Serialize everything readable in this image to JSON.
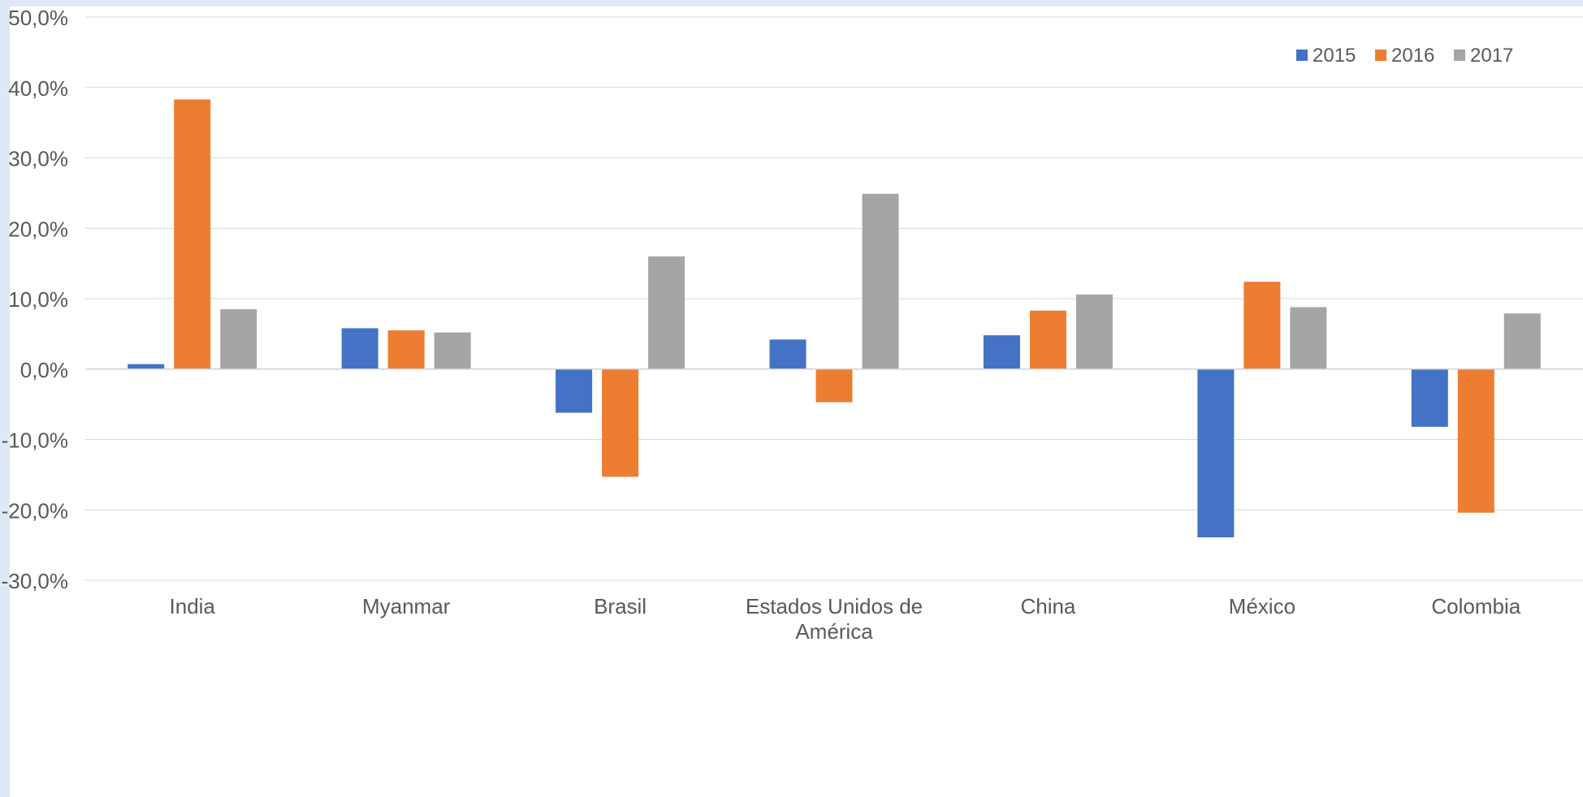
{
  "chart_data": {
    "type": "bar",
    "categories": [
      "India",
      "Myanmar",
      "Brasil",
      "Estados Unidos de América",
      "China",
      "México",
      "Colombia"
    ],
    "category_lines": [
      [
        "India"
      ],
      [
        "Myanmar"
      ],
      [
        "Brasil"
      ],
      [
        "Estados Unidos de",
        "América"
      ],
      [
        "China"
      ],
      [
        "México"
      ],
      [
        "Colombia"
      ]
    ],
    "series": [
      {
        "name": "2015",
        "color": "#4472c4",
        "values": [
          0.7,
          5.8,
          -6.2,
          4.2,
          4.8,
          -23.9,
          -8.2
        ]
      },
      {
        "name": "2016",
        "color": "#ed7d31",
        "values": [
          38.3,
          5.5,
          -15.3,
          -4.7,
          8.3,
          12.4,
          -20.4
        ]
      },
      {
        "name": "2017",
        "color": "#a5a5a5",
        "values": [
          8.5,
          5.2,
          16.0,
          24.9,
          10.6,
          8.8,
          7.9
        ]
      }
    ],
    "yticks": [
      50,
      40,
      30,
      20,
      10,
      0,
      -10,
      -20,
      -30
    ],
    "ytick_labels": [
      "50,0%",
      "40,0%",
      "30,0%",
      "20,0%",
      "10,0%",
      "0,0%",
      "-10,0%",
      "-20,0%",
      "-30,0%"
    ],
    "ylim": [
      -30,
      50
    ],
    "grid": true,
    "legend_position": "top-right",
    "title": "",
    "xlabel": "",
    "ylabel": ""
  }
}
